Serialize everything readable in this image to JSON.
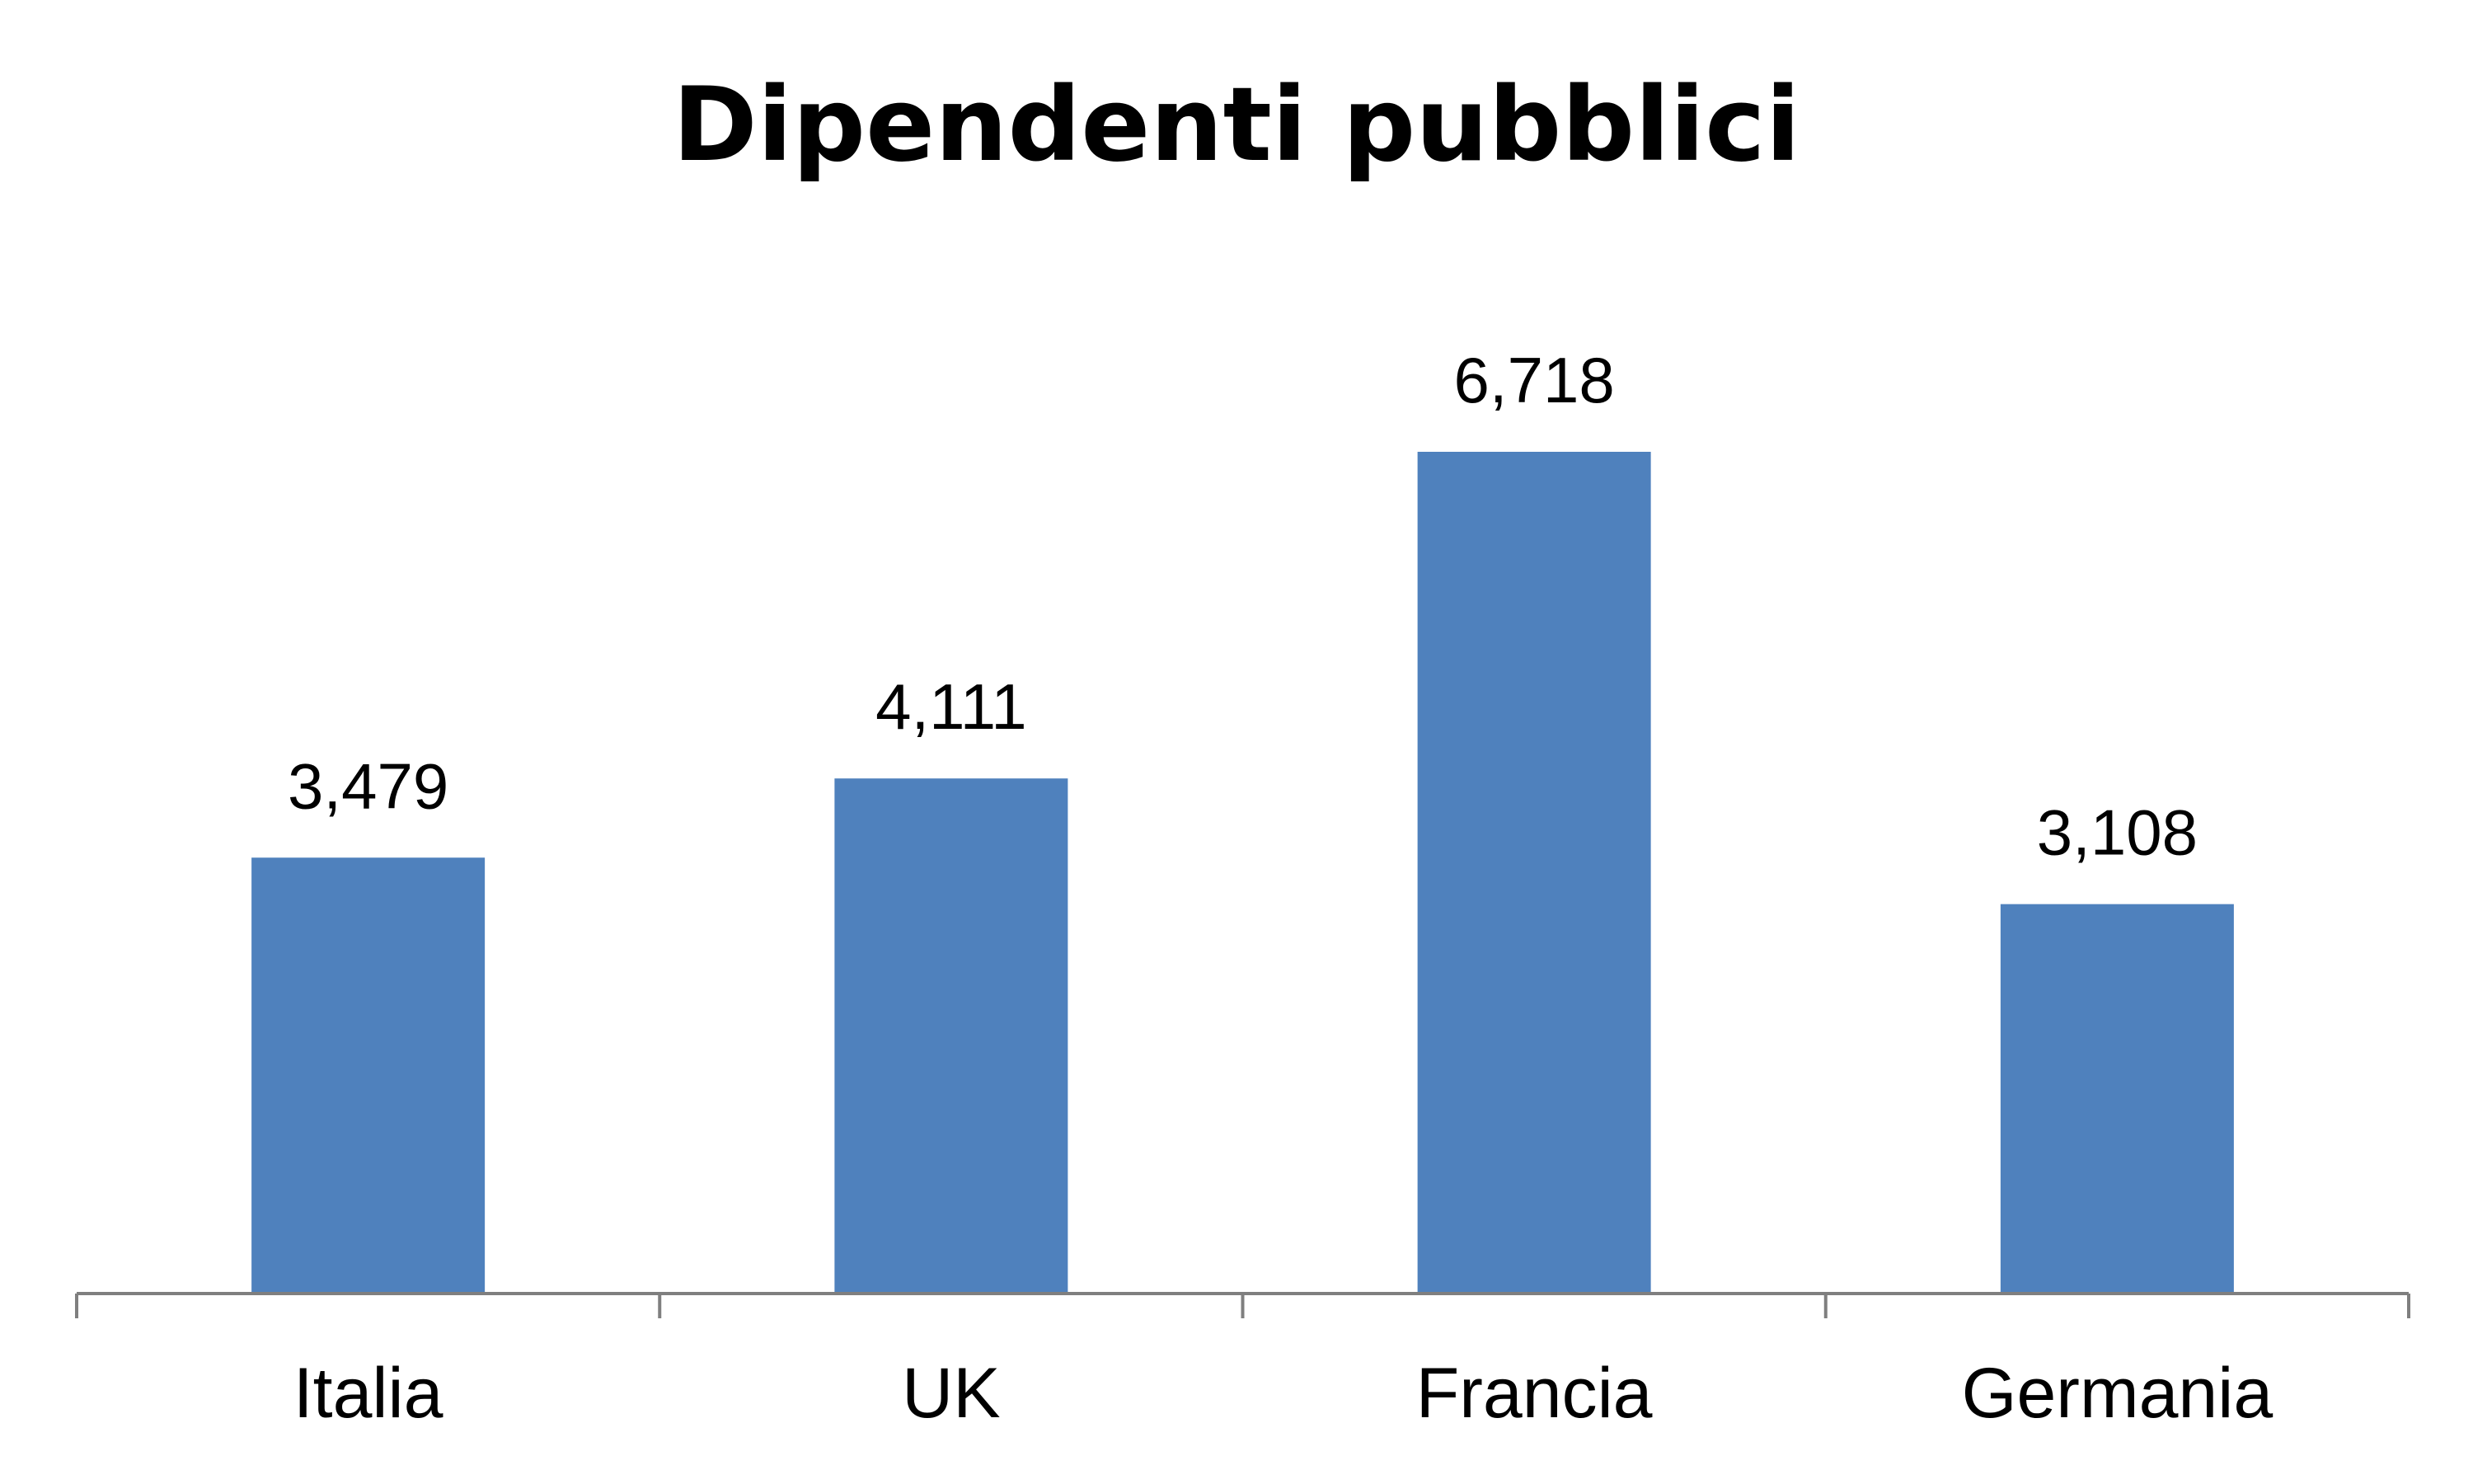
{
  "chart_data": {
    "type": "bar",
    "title": "Dipendenti pubblici",
    "xlabel": "",
    "ylabel": "",
    "categories": [
      "Italia",
      "UK",
      "Francia",
      "Germania"
    ],
    "values": [
      3.479,
      4.111,
      6.718,
      3.108
    ],
    "value_labels": [
      "3,479",
      "4,111",
      "6,718",
      "3,108"
    ],
    "ylim": [
      0,
      6.718
    ],
    "grid": false,
    "legend": "none",
    "bar_color": "#4F81BD",
    "axis_color": "#7F7F7F"
  }
}
